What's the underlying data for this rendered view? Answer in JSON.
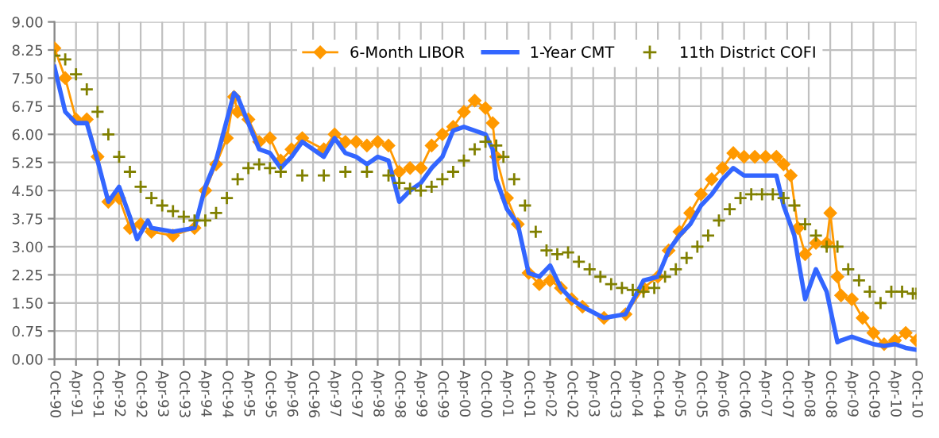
{
  "chart_data": {
    "type": "line",
    "xlim": [
      "1990-10",
      "2010-10"
    ],
    "xticks": [
      {
        "value": "1990-10",
        "label": "Oct-90"
      },
      {
        "value": "1991-04",
        "label": "Apr-91"
      },
      {
        "value": "1991-10",
        "label": "Oct-91"
      },
      {
        "value": "1992-04",
        "label": "Apr-92"
      },
      {
        "value": "1992-10",
        "label": "Oct-92"
      },
      {
        "value": "1993-04",
        "label": "Apr-93"
      },
      {
        "value": "1993-10",
        "label": "Oct-93"
      },
      {
        "value": "1994-04",
        "label": "Apr-94"
      },
      {
        "value": "1994-10",
        "label": "Oct-94"
      },
      {
        "value": "1995-04",
        "label": "Apr-95"
      },
      {
        "value": "1995-10",
        "label": "Oct-95"
      },
      {
        "value": "1996-04",
        "label": "Apr-96"
      },
      {
        "value": "1996-10",
        "label": "Oct-96"
      },
      {
        "value": "1997-04",
        "label": "Apr-97"
      },
      {
        "value": "1997-10",
        "label": "Oct-97"
      },
      {
        "value": "1998-04",
        "label": "Apr-98"
      },
      {
        "value": "1998-10",
        "label": "Oct-98"
      },
      {
        "value": "1999-04",
        "label": "Apr-99"
      },
      {
        "value": "1999-10",
        "label": "Oct-99"
      },
      {
        "value": "2000-04",
        "label": "Apr-00"
      },
      {
        "value": "2000-10",
        "label": "Oct-00"
      },
      {
        "value": "2001-04",
        "label": "Apr-01"
      },
      {
        "value": "2001-10",
        "label": "Oct-01"
      },
      {
        "value": "2002-04",
        "label": "Apr-02"
      },
      {
        "value": "2002-10",
        "label": "Oct-02"
      },
      {
        "value": "2003-04",
        "label": "Apr-03"
      },
      {
        "value": "2003-10",
        "label": "Oct-03"
      },
      {
        "value": "2004-04",
        "label": "Apr-04"
      },
      {
        "value": "2004-10",
        "label": "Oct-04"
      },
      {
        "value": "2005-04",
        "label": "Apr-05"
      },
      {
        "value": "2005-10",
        "label": "Oct-05"
      },
      {
        "value": "2006-04",
        "label": "Apr-06"
      },
      {
        "value": "2006-10",
        "label": "Oct-06"
      },
      {
        "value": "2007-04",
        "label": "Apr-07"
      },
      {
        "value": "2007-10",
        "label": "Oct-07"
      },
      {
        "value": "2008-04",
        "label": "Apr-08"
      },
      {
        "value": "2008-10",
        "label": "Oct-08"
      },
      {
        "value": "2009-04",
        "label": "Apr-09"
      },
      {
        "value": "2009-10",
        "label": "Oct-09"
      },
      {
        "value": "2010-04",
        "label": "Apr-10"
      },
      {
        "value": "2010-10",
        "label": "Oct-10"
      }
    ],
    "ylim": [
      0,
      9
    ],
    "yticks": [
      {
        "value": 0,
        "label": "0.00"
      },
      {
        "value": 0.75,
        "label": "0.75"
      },
      {
        "value": 1.5,
        "label": "1.50"
      },
      {
        "value": 2.25,
        "label": "2.25"
      },
      {
        "value": 3,
        "label": "3.00"
      },
      {
        "value": 3.75,
        "label": "3.75"
      },
      {
        "value": 4.5,
        "label": "4.50"
      },
      {
        "value": 5.25,
        "label": "5.25"
      },
      {
        "value": 6,
        "label": "6.00"
      },
      {
        "value": 6.75,
        "label": "6.75"
      },
      {
        "value": 7.5,
        "label": "7.50"
      },
      {
        "value": 8.25,
        "label": "8.25"
      },
      {
        "value": 9,
        "label": "9.00"
      }
    ],
    "grid": true,
    "legend": "top right",
    "series": [
      {
        "name": "6-Month LIBOR",
        "marker": "diamond",
        "color": "#ff9900",
        "x": [
          "1990-10",
          "1991-01",
          "1991-04",
          "1991-07",
          "1991-10",
          "1992-01",
          "1992-04",
          "1992-07",
          "1992-10",
          "1993-01",
          "1993-07",
          "1994-01",
          "1994-04",
          "1994-07",
          "1994-10",
          "1994-12",
          "1995-01",
          "1995-04",
          "1995-07",
          "1995-10",
          "1996-01",
          "1996-04",
          "1996-07",
          "1997-01",
          "1997-04",
          "1997-07",
          "1997-10",
          "1998-01",
          "1998-04",
          "1998-07",
          "1998-10",
          "1999-01",
          "1999-04",
          "1999-07",
          "1999-10",
          "2000-01",
          "2000-04",
          "2000-07",
          "2000-10",
          "2000-12",
          "2001-01",
          "2001-04",
          "2001-07",
          "2001-10",
          "2002-01",
          "2002-04",
          "2002-07",
          "2002-10",
          "2003-01",
          "2003-07",
          "2004-01",
          "2004-06",
          "2004-10",
          "2005-01",
          "2005-04",
          "2005-07",
          "2005-10",
          "2006-01",
          "2006-04",
          "2006-07",
          "2006-10",
          "2007-01",
          "2007-04",
          "2007-07",
          "2007-09",
          "2007-11",
          "2008-01",
          "2008-03",
          "2008-06",
          "2008-09",
          "2008-10",
          "2008-12",
          "2009-01",
          "2009-04",
          "2009-07",
          "2009-10",
          "2010-01",
          "2010-04",
          "2010-07",
          "2010-10"
        ],
        "values": [
          8.3,
          7.5,
          6.4,
          6.4,
          5.4,
          4.2,
          4.3,
          3.5,
          3.6,
          3.4,
          3.3,
          3.5,
          4.5,
          5.2,
          5.9,
          7.0,
          6.6,
          6.4,
          5.8,
          5.9,
          5.3,
          5.6,
          5.9,
          5.6,
          6.0,
          5.8,
          5.8,
          5.7,
          5.8,
          5.7,
          5.0,
          5.1,
          5.1,
          5.7,
          6.0,
          6.2,
          6.6,
          6.9,
          6.7,
          6.3,
          5.4,
          4.3,
          3.6,
          2.3,
          2.0,
          2.1,
          1.9,
          1.6,
          1.4,
          1.1,
          1.2,
          1.9,
          2.2,
          2.9,
          3.4,
          3.9,
          4.4,
          4.8,
          5.1,
          5.5,
          5.4,
          5.4,
          5.4,
          5.4,
          5.2,
          4.9,
          3.5,
          2.8,
          3.1,
          3.1,
          3.9,
          2.2,
          1.7,
          1.6,
          1.1,
          0.7,
          0.4,
          0.5,
          0.7,
          0.5
        ]
      },
      {
        "name": "1-Year CMT",
        "color": "#3366ff",
        "x": [
          "1990-10",
          "1991-01",
          "1991-04",
          "1991-07",
          "1991-10",
          "1992-01",
          "1992-04",
          "1992-07",
          "1992-09",
          "1992-12",
          "1993-01",
          "1993-07",
          "1994-01",
          "1994-04",
          "1994-07",
          "1994-12",
          "1995-01",
          "1995-04",
          "1995-07",
          "1995-10",
          "1996-01",
          "1996-04",
          "1996-07",
          "1997-01",
          "1997-04",
          "1997-07",
          "1997-10",
          "1998-01",
          "1998-04",
          "1998-07",
          "1998-10",
          "1999-01",
          "1999-04",
          "1999-07",
          "1999-10",
          "2000-01",
          "2000-04",
          "2000-07",
          "2000-10",
          "2000-12",
          "2001-01",
          "2001-04",
          "2001-07",
          "2001-10",
          "2002-01",
          "2002-04",
          "2002-07",
          "2002-10",
          "2003-01",
          "2003-07",
          "2004-01",
          "2004-06",
          "2004-10",
          "2005-01",
          "2005-04",
          "2005-07",
          "2005-10",
          "2006-01",
          "2006-04",
          "2006-07",
          "2006-10",
          "2007-01",
          "2007-04",
          "2007-07",
          "2007-09",
          "2007-12",
          "2008-01",
          "2008-03",
          "2008-06",
          "2008-09",
          "2008-12",
          "2009-01",
          "2009-04",
          "2009-07",
          "2009-10",
          "2010-01",
          "2010-04",
          "2010-07",
          "2010-10"
        ],
        "values": [
          7.8,
          6.6,
          6.3,
          6.3,
          5.3,
          4.2,
          4.6,
          3.8,
          3.2,
          3.7,
          3.5,
          3.4,
          3.5,
          4.6,
          5.3,
          7.1,
          7.0,
          6.3,
          5.6,
          5.5,
          5.1,
          5.4,
          5.8,
          5.4,
          5.9,
          5.5,
          5.4,
          5.2,
          5.4,
          5.3,
          4.2,
          4.5,
          4.7,
          5.1,
          5.4,
          6.1,
          6.2,
          6.1,
          6.0,
          5.6,
          4.8,
          4.0,
          3.6,
          2.3,
          2.2,
          2.5,
          1.9,
          1.6,
          1.4,
          1.1,
          1.2,
          2.1,
          2.2,
          2.9,
          3.3,
          3.6,
          4.1,
          4.4,
          4.8,
          5.1,
          4.9,
          4.9,
          4.9,
          4.9,
          4.1,
          3.3,
          2.7,
          1.6,
          2.4,
          1.8,
          0.45,
          0.5,
          0.6,
          0.5,
          0.4,
          0.35,
          0.4,
          0.3,
          0.25
        ]
      },
      {
        "name": "11th District COFI",
        "type": "scatter",
        "marker": "cross",
        "color": "#808000",
        "x": [
          "1990-10",
          "1991-01",
          "1991-04",
          "1991-07",
          "1991-10",
          "1992-01",
          "1992-04",
          "1992-07",
          "1992-10",
          "1993-01",
          "1993-04",
          "1993-07",
          "1993-10",
          "1994-01",
          "1994-04",
          "1994-07",
          "1994-10",
          "1995-01",
          "1995-04",
          "1995-07",
          "1995-10",
          "1996-01",
          "1996-07",
          "1997-01",
          "1997-07",
          "1998-01",
          "1998-07",
          "1998-10",
          "1999-01",
          "1999-04",
          "1999-07",
          "1999-10",
          "2000-01",
          "2000-04",
          "2000-07",
          "2000-10",
          "2001-01",
          "2001-03",
          "2001-06",
          "2001-09",
          "2001-12",
          "2002-03",
          "2002-06",
          "2002-09",
          "2002-12",
          "2003-03",
          "2003-06",
          "2003-09",
          "2003-12",
          "2004-03",
          "2004-06",
          "2004-09",
          "2004-12",
          "2005-03",
          "2005-06",
          "2005-09",
          "2005-12",
          "2006-03",
          "2006-06",
          "2006-09",
          "2006-12",
          "2007-03",
          "2007-06",
          "2007-09",
          "2007-12",
          "2008-03",
          "2008-06",
          "2008-09",
          "2008-12",
          "2009-03",
          "2009-06",
          "2009-09",
          "2009-12",
          "2010-03",
          "2010-06",
          "2010-09",
          "2010-10"
        ],
        "values": [
          8.1,
          8.0,
          7.6,
          7.2,
          6.6,
          6.0,
          5.4,
          5.0,
          4.6,
          4.3,
          4.1,
          3.95,
          3.8,
          3.7,
          3.7,
          3.9,
          4.3,
          4.8,
          5.1,
          5.2,
          5.1,
          5.0,
          4.9,
          4.9,
          5.0,
          5.0,
          4.9,
          4.7,
          4.55,
          4.5,
          4.6,
          4.8,
          5.0,
          5.3,
          5.6,
          5.8,
          5.7,
          5.4,
          4.8,
          4.1,
          3.4,
          2.9,
          2.8,
          2.85,
          2.6,
          2.4,
          2.2,
          2.0,
          1.9,
          1.85,
          1.8,
          1.9,
          2.2,
          2.4,
          2.7,
          3.0,
          3.3,
          3.7,
          4.0,
          4.3,
          4.4,
          4.4,
          4.4,
          4.3,
          4.1,
          3.6,
          3.3,
          3.0,
          3.0,
          2.4,
          2.1,
          1.8,
          1.5,
          1.8,
          1.8,
          1.75,
          1.75
        ]
      }
    ]
  }
}
